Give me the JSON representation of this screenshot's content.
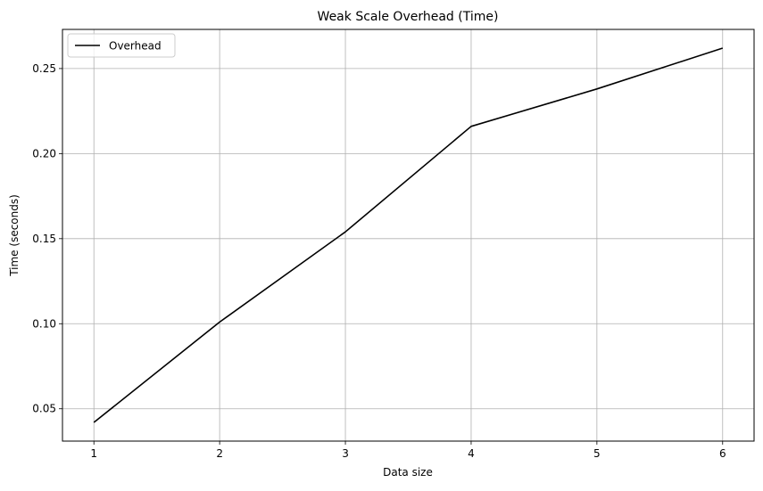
{
  "chart_data": {
    "type": "line",
    "title": "Weak Scale Overhead (Time)",
    "xlabel": "Data size",
    "ylabel": "Time (seconds)",
    "x": [
      1,
      2,
      3,
      4,
      5,
      6
    ],
    "series": [
      {
        "name": "Overhead",
        "color": "#000000",
        "values": [
          0.042,
          0.101,
          0.154,
          0.216,
          0.238,
          0.262
        ]
      }
    ],
    "xticks": [
      1,
      2,
      3,
      4,
      5,
      6
    ],
    "xtick_labels": [
      "1",
      "2",
      "3",
      "4",
      "5",
      "6"
    ],
    "yticks": [
      0.05,
      0.1,
      0.15,
      0.2,
      0.25
    ],
    "ytick_labels": [
      "0.05",
      "0.10",
      "0.15",
      "0.20",
      "0.25"
    ],
    "xlim": [
      0.75,
      6.25
    ],
    "ylim": [
      0.031,
      0.273
    ],
    "grid": true,
    "grid_color": "#b0b0b0",
    "legend_position": "upper-left"
  }
}
